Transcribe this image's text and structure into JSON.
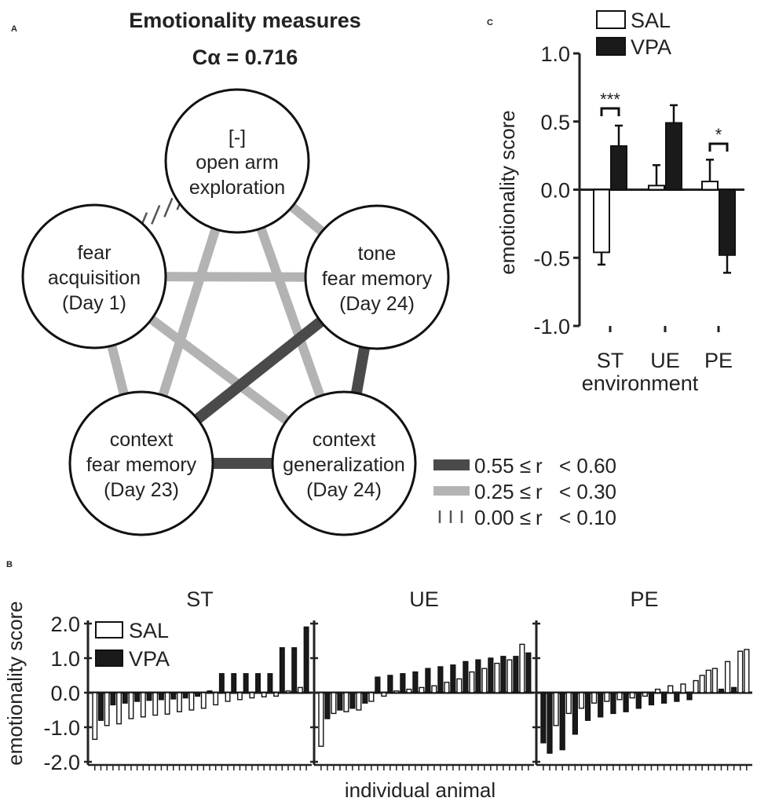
{
  "colors": {
    "strong_edge": "#4a4a4a",
    "light_edge": "#b3b3b3",
    "dashed_edge": "#555555",
    "vpa_fill": "#1a1a1a",
    "sal_fill": "#ffffff",
    "axis": "#222222"
  },
  "panelA": {
    "label": "A",
    "title": "Emotionality measures",
    "alpha": "Cα = 0.716",
    "nodes": [
      {
        "id": "open-arm",
        "lines": [
          "[-]",
          "open arm",
          "exploration"
        ]
      },
      {
        "id": "tone",
        "lines": [
          "tone",
          "fear memory",
          "(Day 24)"
        ]
      },
      {
        "id": "ctx-gen",
        "lines": [
          "context",
          "generalization",
          "(Day 24)"
        ]
      },
      {
        "id": "ctx-fear",
        "lines": [
          "context",
          "fear memory",
          "(Day 23)"
        ]
      },
      {
        "id": "fear-acq",
        "lines": [
          "fear",
          "acquisition",
          "(Day 1)"
        ]
      }
    ],
    "edges": [
      {
        "from": "fear-acq",
        "to": "tone",
        "r_class": "light"
      },
      {
        "from": "fear-acq",
        "to": "ctx-fear",
        "r_class": "light"
      },
      {
        "from": "fear-acq",
        "to": "ctx-gen",
        "r_class": "light"
      },
      {
        "from": "open-arm",
        "to": "ctx-fear",
        "r_class": "light"
      },
      {
        "from": "open-arm",
        "to": "ctx-gen",
        "r_class": "light"
      },
      {
        "from": "open-arm",
        "to": "tone",
        "r_class": "light"
      },
      {
        "from": "open-arm",
        "to": "fear-acq",
        "r_class": "dashed"
      },
      {
        "from": "tone",
        "to": "ctx-fear",
        "r_class": "strong"
      },
      {
        "from": "tone",
        "to": "ctx-gen",
        "r_class": "strong"
      },
      {
        "from": "ctx-fear",
        "to": "ctx-gen",
        "r_class": "strong"
      }
    ],
    "legend": [
      {
        "class": "strong",
        "low": "0.55 ≤",
        "r": "r",
        "high": "< 0.60"
      },
      {
        "class": "light",
        "low": "0.25 ≤",
        "r": "r",
        "high": "< 0.30"
      },
      {
        "class": "dashed",
        "low": "0.00 ≤",
        "r": "r",
        "high": "< 0.10"
      }
    ]
  },
  "chart_data": [
    {
      "type": "bar",
      "panel": "C",
      "label": "C",
      "categories": [
        "ST",
        "UE",
        "PE"
      ],
      "series": [
        {
          "name": "SAL",
          "values": [
            -0.46,
            0.03,
            0.06
          ],
          "errors": [
            0.09,
            0.15,
            0.16
          ]
        },
        {
          "name": "VPA",
          "values": [
            0.32,
            0.49,
            -0.48
          ],
          "errors": [
            0.15,
            0.13,
            0.13
          ]
        }
      ],
      "xlabel": "environment",
      "ylabel": "emotionality score",
      "ylim": [
        -1.0,
        1.0
      ],
      "yticks": [
        "-1.0",
        "-0.5",
        "0.0",
        "0.5",
        "1.0"
      ],
      "significance": [
        {
          "category": "ST",
          "text": "***"
        },
        {
          "category": "PE",
          "text": "*"
        }
      ]
    },
    {
      "type": "bar",
      "panel": "B",
      "label": "B",
      "ylabel": "emotionality score",
      "xlabel": "individual animal",
      "ylim": [
        -2.0,
        2.0
      ],
      "yticks": [
        "-2.0",
        "-1.0",
        "0.0",
        "1.0",
        "2.0"
      ],
      "legend": [
        "SAL",
        "VPA"
      ],
      "subplots": [
        {
          "title": "ST",
          "bars": [
            {
              "g": "SAL",
              "v": -1.35
            },
            {
              "g": "VPA",
              "v": -0.8
            },
            {
              "g": "SAL",
              "v": -0.95
            },
            {
              "g": "VPA",
              "v": -0.35
            },
            {
              "g": "SAL",
              "v": -0.9
            },
            {
              "g": "VPA",
              "v": -0.3
            },
            {
              "g": "SAL",
              "v": -0.75
            },
            {
              "g": "VPA",
              "v": -0.25
            },
            {
              "g": "SAL",
              "v": -0.7
            },
            {
              "g": "VPA",
              "v": -0.22
            },
            {
              "g": "SAL",
              "v": -0.65
            },
            {
              "g": "VPA",
              "v": -0.2
            },
            {
              "g": "SAL",
              "v": -0.62
            },
            {
              "g": "VPA",
              "v": -0.18
            },
            {
              "g": "SAL",
              "v": -0.55
            },
            {
              "g": "VPA",
              "v": -0.15
            },
            {
              "g": "SAL",
              "v": -0.5
            },
            {
              "g": "VPA",
              "v": -0.1
            },
            {
              "g": "SAL",
              "v": -0.45
            },
            {
              "g": "VPA",
              "v": 0.05
            },
            {
              "g": "SAL",
              "v": -0.35
            },
            {
              "g": "VPA",
              "v": 0.55
            },
            {
              "g": "SAL",
              "v": -0.25
            },
            {
              "g": "VPA",
              "v": 0.55
            },
            {
              "g": "SAL",
              "v": -0.2
            },
            {
              "g": "VPA",
              "v": 0.55
            },
            {
              "g": "SAL",
              "v": -0.15
            },
            {
              "g": "VPA",
              "v": 0.55
            },
            {
              "g": "SAL",
              "v": -0.12
            },
            {
              "g": "VPA",
              "v": 0.55
            },
            {
              "g": "SAL",
              "v": -0.1
            },
            {
              "g": "VPA",
              "v": 1.3
            },
            {
              "g": "SAL",
              "v": 0.05
            },
            {
              "g": "VPA",
              "v": 1.3
            },
            {
              "g": "SAL",
              "v": 0.15
            },
            {
              "g": "VPA",
              "v": 1.9
            }
          ]
        },
        {
          "title": "UE",
          "bars": [
            {
              "g": "SAL",
              "v": -1.55
            },
            {
              "g": "VPA",
              "v": -0.75
            },
            {
              "g": "SAL",
              "v": -0.6
            },
            {
              "g": "VPA",
              "v": -0.5
            },
            {
              "g": "SAL",
              "v": -0.55
            },
            {
              "g": "VPA",
              "v": -0.45
            },
            {
              "g": "SAL",
              "v": -0.5
            },
            {
              "g": "VPA",
              "v": -0.3
            },
            {
              "g": "SAL",
              "v": -0.25
            },
            {
              "g": "VPA",
              "v": 0.45
            },
            {
              "g": "SAL",
              "v": -0.1
            },
            {
              "g": "VPA",
              "v": 0.5
            },
            {
              "g": "SAL",
              "v": 0.05
            },
            {
              "g": "VPA",
              "v": 0.55
            },
            {
              "g": "SAL",
              "v": 0.1
            },
            {
              "g": "VPA",
              "v": 0.6
            },
            {
              "g": "SAL",
              "v": 0.15
            },
            {
              "g": "VPA",
              "v": 0.7
            },
            {
              "g": "SAL",
              "v": 0.2
            },
            {
              "g": "VPA",
              "v": 0.75
            },
            {
              "g": "SAL",
              "v": 0.3
            },
            {
              "g": "VPA",
              "v": 0.8
            },
            {
              "g": "SAL",
              "v": 0.4
            },
            {
              "g": "VPA",
              "v": 0.9
            },
            {
              "g": "SAL",
              "v": 0.6
            },
            {
              "g": "VPA",
              "v": 0.95
            },
            {
              "g": "SAL",
              "v": 0.7
            },
            {
              "g": "VPA",
              "v": 1.0
            },
            {
              "g": "SAL",
              "v": 0.85
            },
            {
              "g": "VPA",
              "v": 1.05
            },
            {
              "g": "SAL",
              "v": 0.95
            },
            {
              "g": "VPA",
              "v": 1.05
            },
            {
              "g": "SAL",
              "v": 1.4
            },
            {
              "g": "VPA",
              "v": 1.15
            }
          ]
        },
        {
          "title": "PE",
          "bars": [
            {
              "g": "VPA",
              "v": -1.45
            },
            {
              "g": "VPA",
              "v": -1.75
            },
            {
              "g": "SAL",
              "v": -0.95
            },
            {
              "g": "VPA",
              "v": -1.65
            },
            {
              "g": "SAL",
              "v": -0.6
            },
            {
              "g": "VPA",
              "v": -1.2
            },
            {
              "g": "SAL",
              "v": -0.45
            },
            {
              "g": "VPA",
              "v": -0.8
            },
            {
              "g": "SAL",
              "v": -0.3
            },
            {
              "g": "VPA",
              "v": -0.7
            },
            {
              "g": "SAL",
              "v": -0.25
            },
            {
              "g": "VPA",
              "v": -0.6
            },
            {
              "g": "SAL",
              "v": -0.2
            },
            {
              "g": "VPA",
              "v": -0.55
            },
            {
              "g": "SAL",
              "v": -0.15
            },
            {
              "g": "VPA",
              "v": -0.45
            },
            {
              "g": "SAL",
              "v": -0.1
            },
            {
              "g": "VPA",
              "v": -0.35
            },
            {
              "g": "SAL",
              "v": 0.1
            },
            {
              "g": "VPA",
              "v": -0.3
            },
            {
              "g": "SAL",
              "v": 0.2
            },
            {
              "g": "VPA",
              "v": -0.25
            },
            {
              "g": "SAL",
              "v": 0.25
            },
            {
              "g": "VPA",
              "v": -0.2
            },
            {
              "g": "SAL",
              "v": 0.35
            },
            {
              "g": "SAL",
              "v": 0.5
            },
            {
              "g": "SAL",
              "v": 0.65
            },
            {
              "g": "SAL",
              "v": 0.7
            },
            {
              "g": "VPA",
              "v": 0.1
            },
            {
              "g": "SAL",
              "v": 0.9
            },
            {
              "g": "VPA",
              "v": 0.15
            },
            {
              "g": "SAL",
              "v": 1.2
            },
            {
              "g": "SAL",
              "v": 1.25
            }
          ]
        }
      ]
    }
  ]
}
